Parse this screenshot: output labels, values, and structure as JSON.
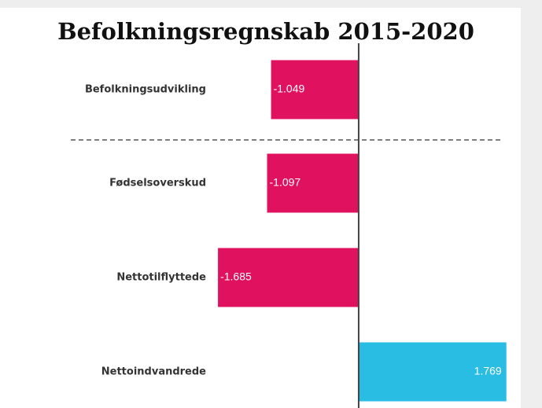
{
  "chart_data": {
    "type": "hbar",
    "title": "Befolkningsregnskab 2015-2020",
    "categories": [
      "Befolkningsudvikling",
      "Fødselsoverskud",
      "Nettotilflyttede",
      "Nettoindvandrede"
    ],
    "values": [
      -1049,
      -1097,
      -1685,
      1769
    ],
    "value_labels": [
      "-1.049",
      "-1.097",
      "-1.685",
      "1.769"
    ],
    "colors": [
      "#e0115f",
      "#e0115f",
      "#e0115f",
      "#29bde3"
    ],
    "xlim": [
      -1700,
      1800
    ]
  }
}
